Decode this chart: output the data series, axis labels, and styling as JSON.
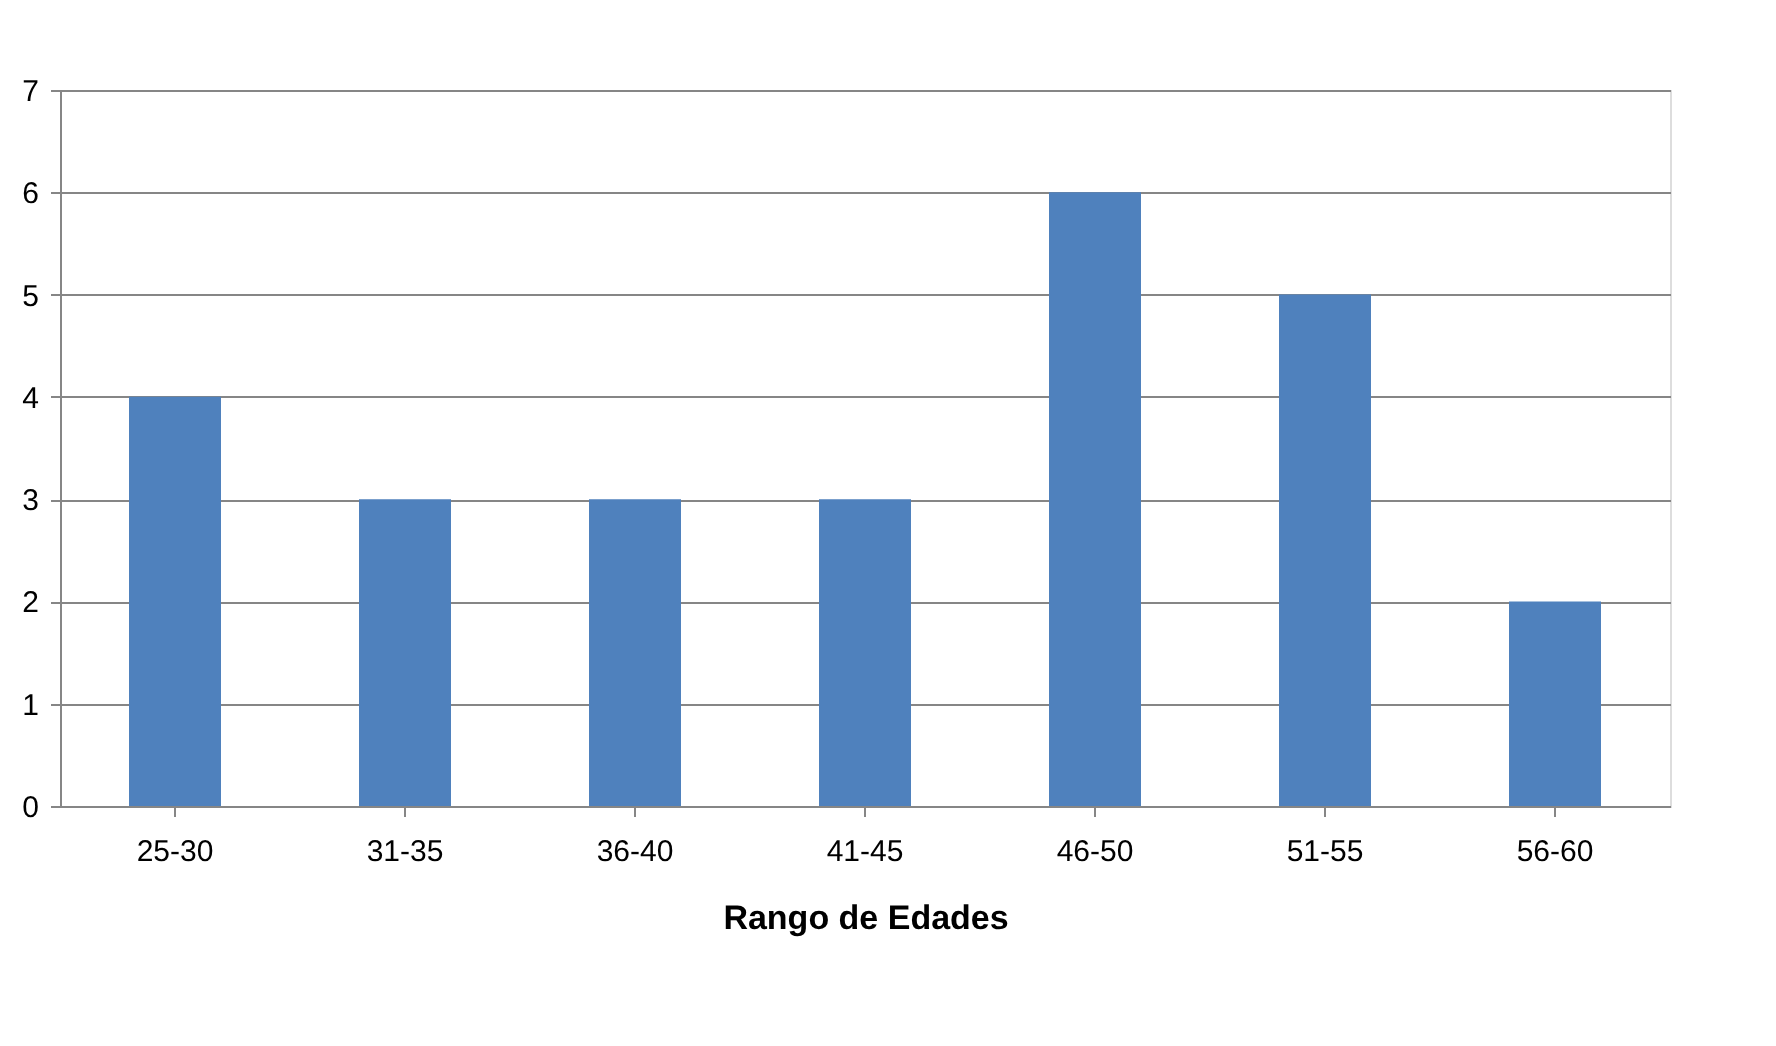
{
  "chart_data": {
    "type": "bar",
    "xlabel": "Rango de  Edades",
    "categories": [
      "25-30",
      "31-35",
      "36-40",
      "41-45",
      "46-50",
      "51-55",
      "56-60"
    ],
    "values": [
      4,
      3,
      3,
      3,
      6,
      5,
      2
    ],
    "color": "#4f81bd",
    "ylim": [
      0,
      7
    ],
    "yticks": [
      0,
      1,
      2,
      3,
      4,
      5,
      6,
      7
    ],
    "grid": "y"
  }
}
